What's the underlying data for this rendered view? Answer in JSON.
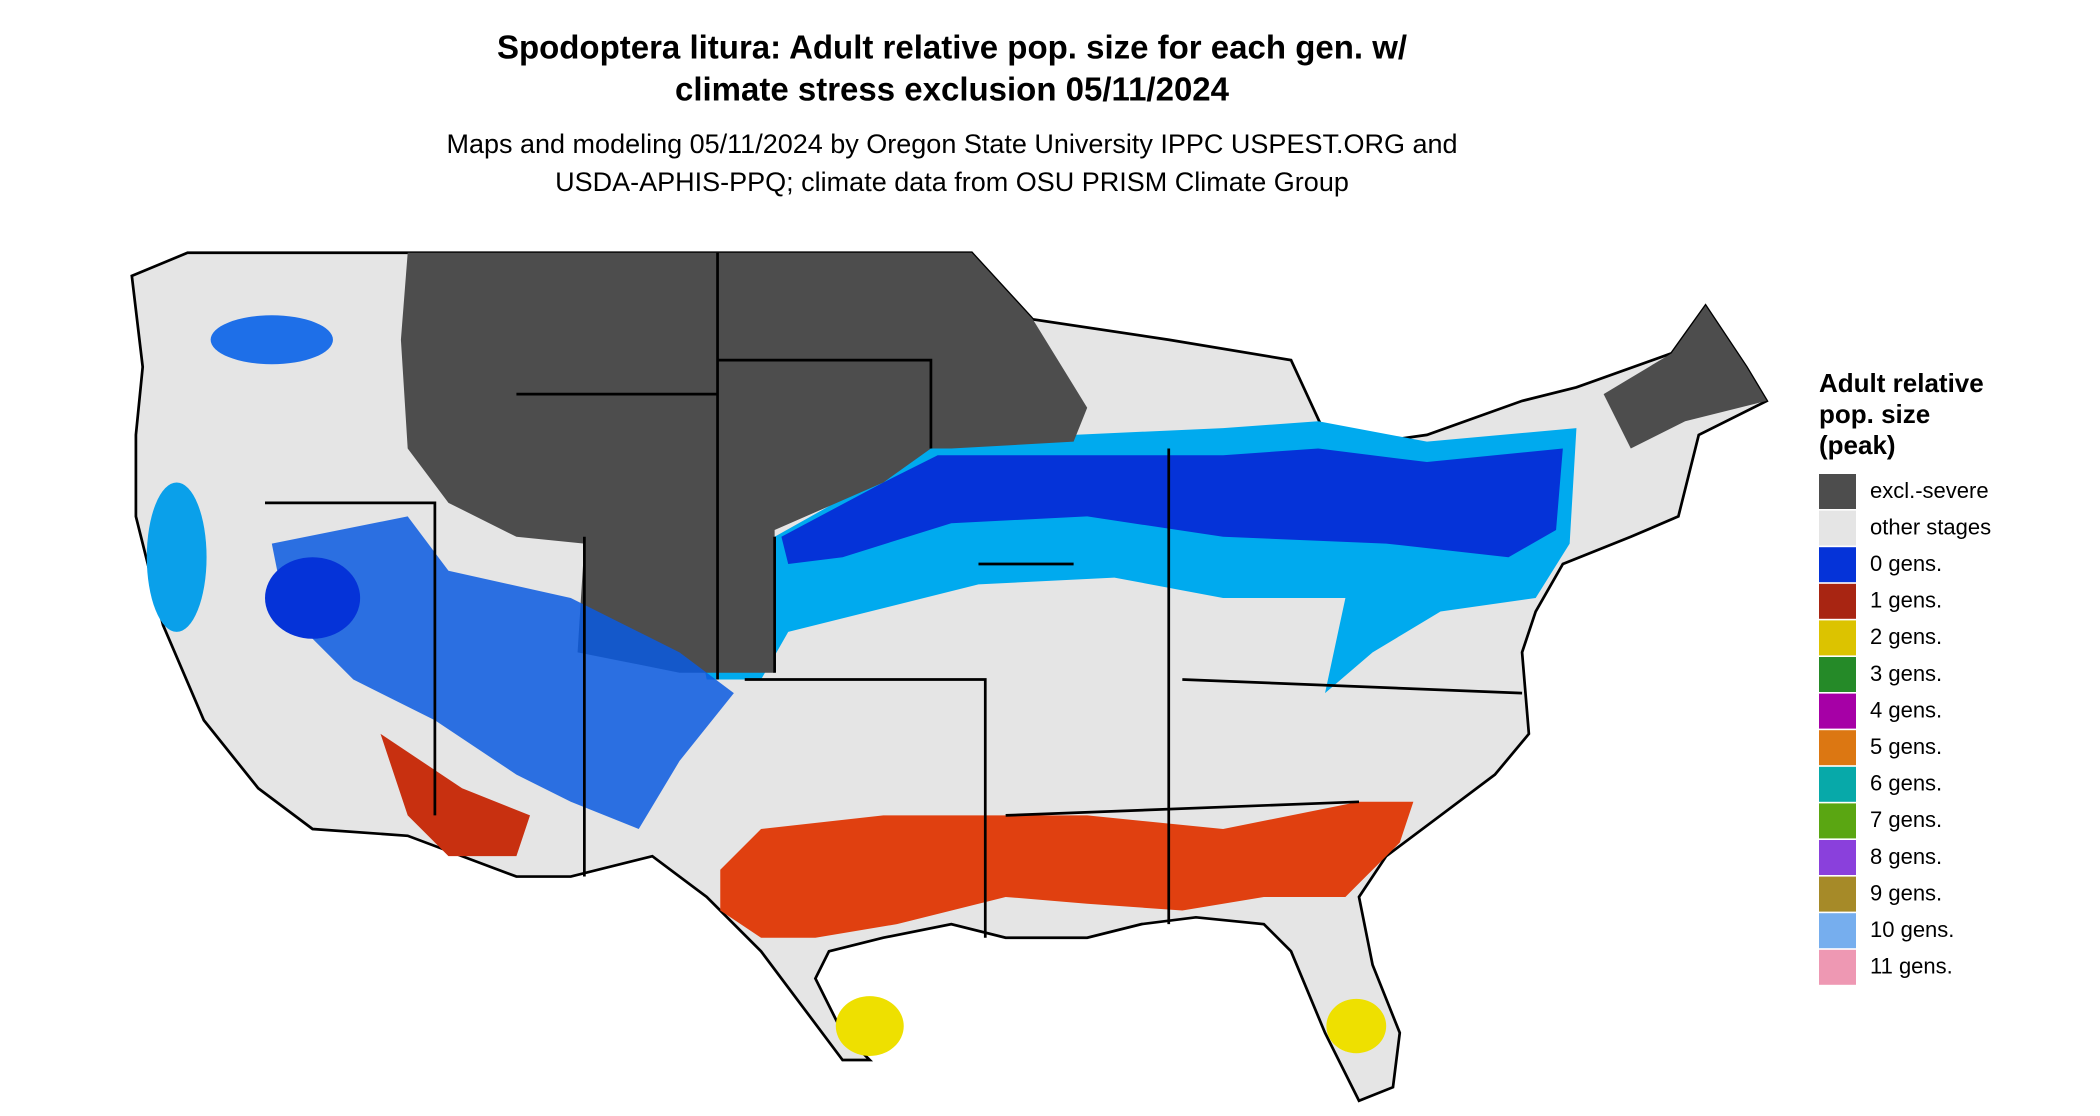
{
  "header": {
    "title_lines": [
      "Spodoptera litura: Adult relative pop. size for each gen. w/",
      "climate stress exclusion 05/11/2024"
    ],
    "subtitle_lines": [
      "Maps and modeling 05/11/2024 by Oregon State University IPPC USPEST.ORG and",
      "USDA-APHIS-PPQ; climate data from OSU PRISM Climate Group"
    ]
  },
  "legend": {
    "title_lines": [
      "Adult relative",
      "pop. size",
      "(peak)"
    ],
    "items": [
      {
        "label": "excl.-severe",
        "color": "#4d4d4d"
      },
      {
        "label": "other stages",
        "color": "#e5e5e5"
      },
      {
        "label": "0 gens.",
        "color": "#0533d8"
      },
      {
        "label": "1 gens.",
        "color": "#a82512"
      },
      {
        "label": "2 gens.",
        "color": "#dcc300"
      },
      {
        "label": "3 gens.",
        "color": "#258a28"
      },
      {
        "label": "4 gens.",
        "color": "#a600a6"
      },
      {
        "label": "5 gens.",
        "color": "#dc7712"
      },
      {
        "label": "6 gens.",
        "color": "#07a9a9"
      },
      {
        "label": "7 gens.",
        "color": "#5aa612"
      },
      {
        "label": "8 gens.",
        "color": "#8a40dc"
      },
      {
        "label": "9 gens.",
        "color": "#a68a28"
      },
      {
        "label": "10 gens.",
        "color": "#76aeee"
      },
      {
        "label": "11 gens.",
        "color": "#ee98b3"
      }
    ]
  }
}
